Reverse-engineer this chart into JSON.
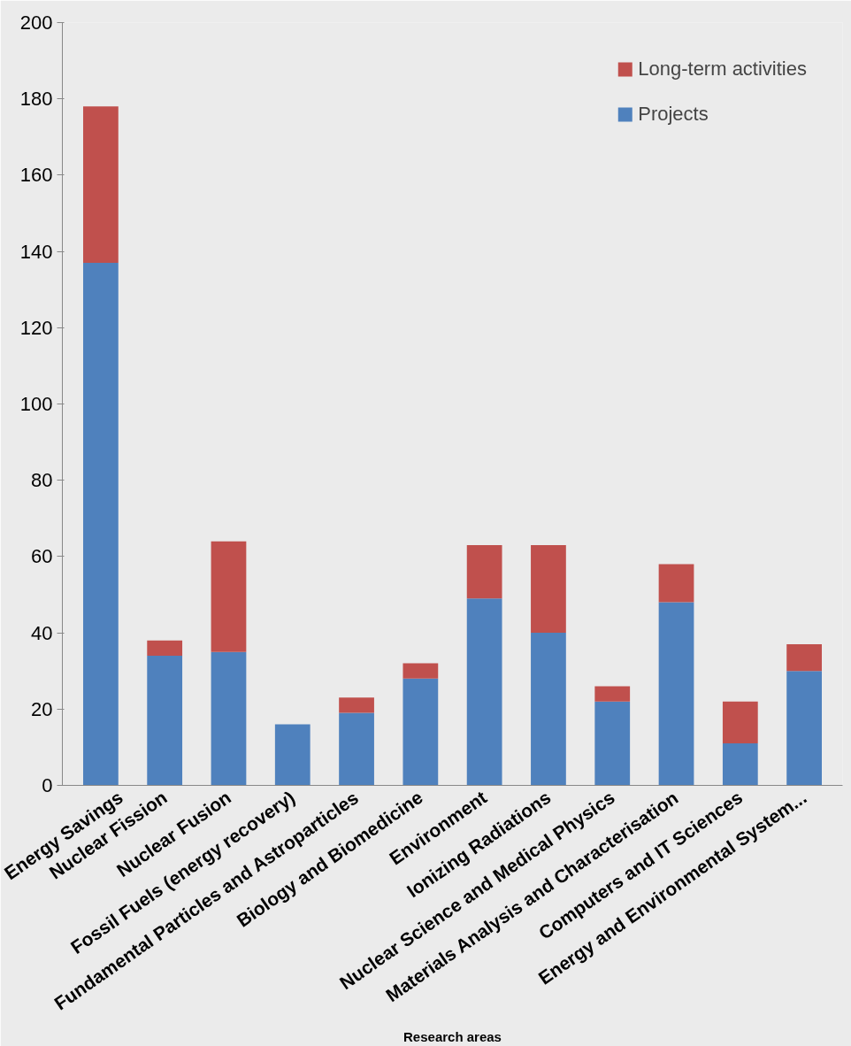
{
  "chart_data": {
    "type": "bar",
    "stacked": true,
    "xlabel": "Research areas",
    "categories": [
      "Energy Savings",
      "Nuclear Fission",
      "Nuclear Fusion",
      "Fossil Fuels (energy recovery)",
      "Fundamental Particles and Astroparticles",
      "Biology and Biomedicine",
      "Environment",
      "Ionizing Radiations",
      "Nuclear Science and Medical Physics",
      "Materials Analysis and Characterisation",
      "Computers and IT Sciences",
      "Energy and Environmental System..."
    ],
    "series": [
      {
        "name": "Projects",
        "color": "#4f81bd",
        "values": [
          137,
          34,
          35,
          16,
          19,
          28,
          49,
          40,
          22,
          48,
          11,
          30
        ]
      },
      {
        "name": "Long-term activities",
        "color": "#c0504d",
        "values": [
          41,
          4,
          29,
          0,
          4,
          4,
          14,
          23,
          4,
          10,
          11,
          7
        ]
      }
    ],
    "ylim": [
      0,
      200
    ],
    "yticks": [
      0,
      20,
      40,
      60,
      80,
      100,
      120,
      140,
      160,
      180,
      200
    ],
    "grid": false,
    "legend": "top right"
  }
}
